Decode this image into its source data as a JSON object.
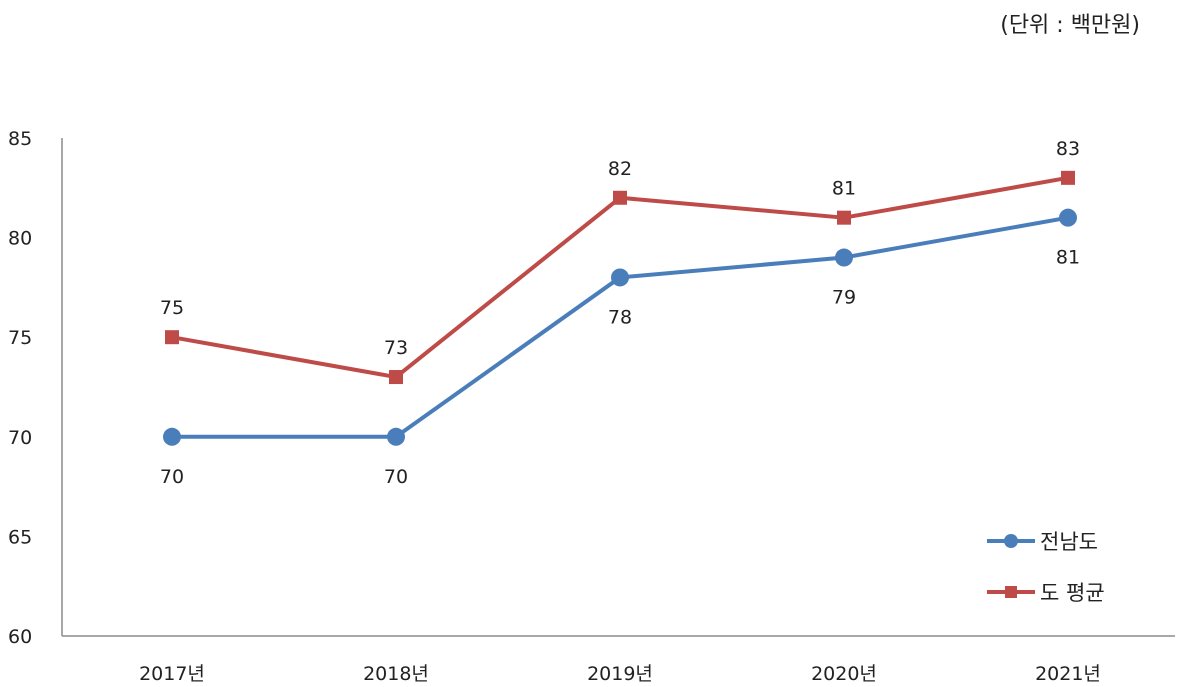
{
  "chart_data": {
    "type": "line",
    "unit_label": "(단위 : 백만원)",
    "categories": [
      "2017년",
      "2018년",
      "2019년",
      "2020년",
      "2021년"
    ],
    "ylim": [
      60,
      85
    ],
    "y_ticks": [
      60,
      65,
      70,
      75,
      80,
      85
    ],
    "grid": false,
    "legend_position": "bottom-right",
    "series": [
      {
        "name": "전남도",
        "values": [
          70,
          70,
          78,
          79,
          81
        ],
        "color": "#4a7ebb",
        "marker": "circle",
        "label_position": "below"
      },
      {
        "name": "도 평균",
        "values": [
          75,
          73,
          82,
          81,
          83
        ],
        "color": "#be4b48",
        "marker": "square",
        "label_position": "above"
      }
    ],
    "axis_color": "#8c8c8c"
  }
}
